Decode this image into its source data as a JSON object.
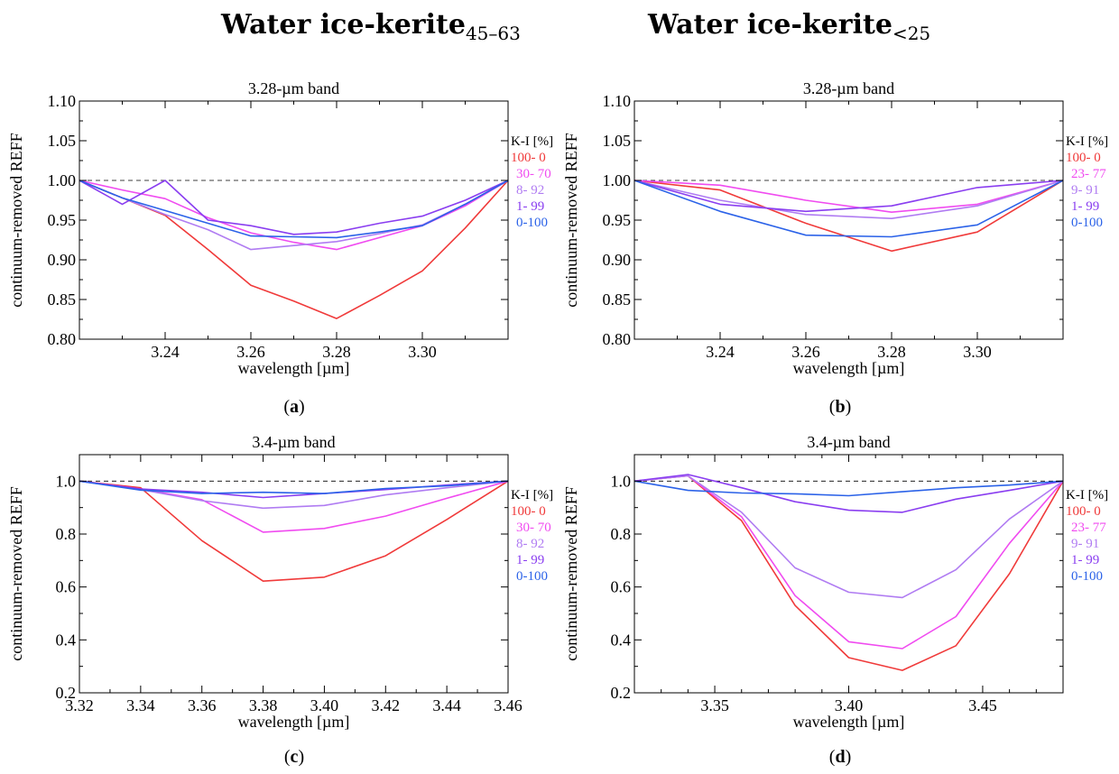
{
  "header": {
    "left": {
      "main": "Water ice-kerite",
      "sub": "45–63"
    },
    "right": {
      "main": "Water ice-kerite",
      "sub": "<25"
    }
  },
  "legend_title": "K-I [%]",
  "colors": {
    "c100_0": "#f03a3a",
    "c30_70": "#f04bf0",
    "c8_92": "#b07cf2",
    "c1_99": "#8a3ef0",
    "c0_100": "#2b62e8"
  },
  "chart_data": [
    {
      "id": "a",
      "type": "line",
      "caption": "a",
      "title": "3.28-µm band",
      "xlabel": "wavelength [µm]",
      "ylabel": "continuum-removed REFF",
      "xlim": [
        3.22,
        3.32
      ],
      "ylim": [
        0.8,
        1.1
      ],
      "xticks": [
        3.24,
        3.26,
        3.28,
        3.3
      ],
      "xticklabels": [
        "3.24",
        "3.26",
        "3.28",
        "3.30"
      ],
      "xminor": [
        3.23,
        3.25,
        3.27,
        3.29,
        3.31
      ],
      "yticks": [
        0.8,
        0.85,
        0.9,
        0.95,
        1.0,
        1.05,
        1.1
      ],
      "yticklabels": [
        "0.80",
        "0.85",
        "0.90",
        "0.95",
        "1.00",
        "1.05",
        "1.10"
      ],
      "reference_line": 1.0,
      "x": [
        3.22,
        3.23,
        3.24,
        3.25,
        3.26,
        3.27,
        3.28,
        3.29,
        3.3,
        3.31,
        3.32
      ],
      "series": [
        {
          "name": "100- 0",
          "color": "#f03a3a",
          "values": [
            1.0,
            0.978,
            0.956,
            0.913,
            0.868,
            0.848,
            0.826,
            0.855,
            0.886,
            0.94,
            1.0
          ]
        },
        {
          "name": "30- 70",
          "color": "#f04bf0",
          "values": [
            1.0,
            0.988,
            0.977,
            0.953,
            0.934,
            0.922,
            0.913,
            0.928,
            0.943,
            0.968,
            1.0
          ]
        },
        {
          "name": "8- 92",
          "color": "#b07cf2",
          "values": [
            1.0,
            0.978,
            0.957,
            0.938,
            0.913,
            0.918,
            0.923,
            0.933,
            0.944,
            0.97,
            1.0
          ]
        },
        {
          "name": "1- 99",
          "color": "#8a3ef0",
          "values": [
            1.0,
            0.97,
            1.0,
            0.95,
            0.943,
            0.932,
            0.935,
            0.946,
            0.955,
            0.975,
            1.0
          ]
        },
        {
          "name": "0-100",
          "color": "#2b62e8",
          "values": [
            1.0,
            0.978,
            0.962,
            0.946,
            0.93,
            0.929,
            0.928,
            0.935,
            0.943,
            0.97,
            1.0
          ]
        }
      ]
    },
    {
      "id": "b",
      "type": "line",
      "caption": "b",
      "title": "3.28-µm band",
      "xlabel": "wavelength [µm]",
      "ylabel": "continuum-removed REFF",
      "xlim": [
        3.22,
        3.32
      ],
      "ylim": [
        0.8,
        1.1
      ],
      "xticks": [
        3.24,
        3.26,
        3.28,
        3.3
      ],
      "xticklabels": [
        "3.24",
        "3.26",
        "3.28",
        "3.30"
      ],
      "xminor": [
        3.23,
        3.25,
        3.27,
        3.29,
        3.31
      ],
      "yticks": [
        0.8,
        0.85,
        0.9,
        0.95,
        1.0,
        1.05,
        1.1
      ],
      "yticklabels": [
        "0.80",
        "0.85",
        "0.90",
        "0.95",
        "1.00",
        "1.05",
        "1.10"
      ],
      "reference_line": 1.0,
      "x": [
        3.22,
        3.24,
        3.26,
        3.28,
        3.3,
        3.32
      ],
      "series": [
        {
          "name": "100- 0",
          "color": "#f03a3a",
          "values": [
            1.0,
            0.988,
            0.946,
            0.911,
            0.935,
            1.0
          ]
        },
        {
          "name": "23- 77",
          "color": "#f04bf0",
          "values": [
            1.0,
            0.994,
            0.975,
            0.96,
            0.97,
            1.0
          ]
        },
        {
          "name": "9- 91",
          "color": "#b07cf2",
          "values": [
            1.0,
            0.975,
            0.957,
            0.952,
            0.968,
            1.0
          ]
        },
        {
          "name": "1- 99",
          "color": "#8a3ef0",
          "values": [
            1.0,
            0.97,
            0.961,
            0.968,
            0.991,
            1.0
          ]
        },
        {
          "name": "0-100",
          "color": "#2b62e8",
          "values": [
            1.0,
            0.961,
            0.931,
            0.929,
            0.944,
            1.0
          ]
        }
      ]
    },
    {
      "id": "c",
      "type": "line",
      "caption": "c",
      "title": "3.4-µm band",
      "xlabel": "wavelength [µm]",
      "ylabel": "continuum-removed REFF",
      "xlim": [
        3.32,
        3.46
      ],
      "ylim": [
        0.2,
        1.1
      ],
      "xticks": [
        3.32,
        3.34,
        3.36,
        3.38,
        3.4,
        3.42,
        3.44,
        3.46
      ],
      "xticklabels": [
        "3.32",
        "3.34",
        "3.36",
        "3.38",
        "3.40",
        "3.42",
        "3.44",
        "3.46"
      ],
      "xminor": [
        3.33,
        3.35,
        3.37,
        3.39,
        3.41,
        3.43,
        3.45
      ],
      "yticks": [
        0.2,
        0.4,
        0.6,
        0.8,
        1.0
      ],
      "yticklabels": [
        "0.2",
        "0.4",
        "0.6",
        "0.8",
        "1.0"
      ],
      "reference_line": 1.0,
      "x": [
        3.32,
        3.34,
        3.36,
        3.38,
        3.4,
        3.42,
        3.44,
        3.46
      ],
      "series": [
        {
          "name": "100- 0",
          "color": "#f03a3a",
          "values": [
            1.0,
            0.975,
            0.775,
            0.622,
            0.637,
            0.718,
            0.855,
            1.0
          ]
        },
        {
          "name": "30- 70",
          "color": "#f04bf0",
          "values": [
            1.0,
            0.97,
            0.93,
            0.807,
            0.821,
            0.868,
            0.935,
            1.0
          ]
        },
        {
          "name": "8- 92",
          "color": "#b07cf2",
          "values": [
            1.0,
            0.968,
            0.926,
            0.898,
            0.908,
            0.948,
            0.975,
            1.0
          ]
        },
        {
          "name": "1- 99",
          "color": "#8a3ef0",
          "values": [
            1.0,
            0.97,
            0.958,
            0.938,
            0.953,
            0.968,
            0.985,
            1.0
          ]
        },
        {
          "name": "0-100",
          "color": "#2b62e8",
          "values": [
            1.0,
            0.966,
            0.953,
            0.958,
            0.953,
            0.972,
            0.982,
            1.0
          ]
        }
      ]
    },
    {
      "id": "d",
      "type": "line",
      "caption": "d",
      "title": "3.4-µm band",
      "xlabel": "wavelength [µm]",
      "ylabel": "continuum-removed REFF",
      "xlim": [
        3.32,
        3.48
      ],
      "ylim": [
        0.2,
        1.1
      ],
      "xticks": [
        3.35,
        3.4,
        3.45
      ],
      "xticklabels": [
        "3.35",
        "3.40",
        "3.45"
      ],
      "xminor": [
        3.33,
        3.34,
        3.36,
        3.37,
        3.38,
        3.39,
        3.41,
        3.42,
        3.43,
        3.44,
        3.46,
        3.47
      ],
      "yticks": [
        0.2,
        0.4,
        0.6,
        0.8,
        1.0
      ],
      "yticklabels": [
        "0.2",
        "0.4",
        "0.6",
        "0.8",
        "1.0"
      ],
      "reference_line": 1.0,
      "x": [
        3.32,
        3.34,
        3.36,
        3.38,
        3.4,
        3.42,
        3.44,
        3.46,
        3.48
      ],
      "series": [
        {
          "name": "100- 0",
          "color": "#f03a3a",
          "values": [
            1.0,
            1.02,
            0.85,
            0.53,
            0.333,
            0.285,
            0.378,
            0.65,
            1.0
          ]
        },
        {
          "name": "23- 77",
          "color": "#f04bf0",
          "values": [
            1.0,
            1.02,
            0.865,
            0.567,
            0.393,
            0.367,
            0.488,
            0.765,
            1.0
          ]
        },
        {
          "name": "9- 91",
          "color": "#b07cf2",
          "values": [
            1.0,
            1.02,
            0.882,
            0.672,
            0.58,
            0.56,
            0.665,
            0.857,
            1.0
          ]
        },
        {
          "name": "1- 99",
          "color": "#8a3ef0",
          "values": [
            1.0,
            1.025,
            0.975,
            0.922,
            0.89,
            0.882,
            0.932,
            0.965,
            1.0
          ]
        },
        {
          "name": "0-100",
          "color": "#2b62e8",
          "values": [
            1.0,
            0.965,
            0.955,
            0.952,
            0.945,
            0.96,
            0.975,
            0.985,
            1.0
          ]
        }
      ]
    }
  ]
}
